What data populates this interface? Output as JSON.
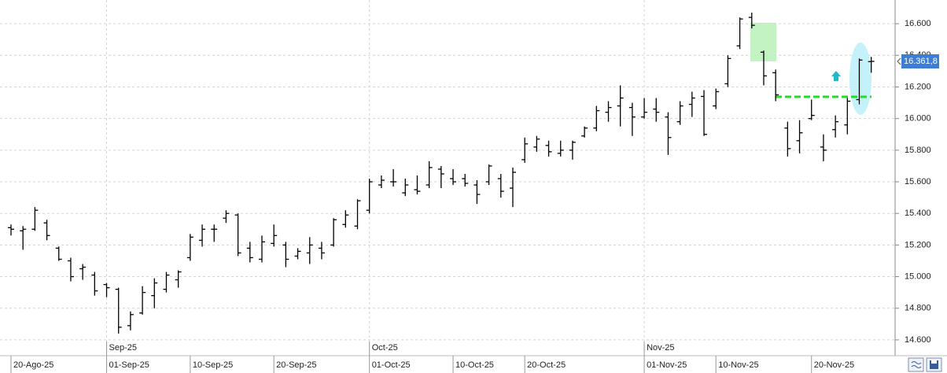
{
  "chart_data": {
    "type": "ohlc",
    "color": "#000000",
    "grid": true,
    "categories": [
      "20-Ago-25",
      null,
      null,
      null,
      null,
      null,
      null,
      null,
      "01-Sep-25",
      null,
      null,
      null,
      null,
      null,
      null,
      "10-Sep-25",
      null,
      null,
      null,
      null,
      null,
      null,
      "20-Sep-25",
      null,
      null,
      null,
      null,
      null,
      null,
      null,
      "01-Oct-25",
      null,
      null,
      null,
      null,
      null,
      null,
      "10-Oct-25",
      null,
      null,
      null,
      null,
      null,
      "20-Oct-25",
      null,
      null,
      null,
      null,
      null,
      null,
      null,
      null,
      null,
      "01-Nov-25",
      null,
      null,
      null,
      null,
      null,
      "10-Nov-25",
      null,
      null,
      null,
      null,
      null,
      null,
      null,
      "20-Nov-25",
      null,
      null,
      null,
      null,
      null
    ],
    "month_labels": [
      null,
      null,
      null,
      null,
      null,
      null,
      null,
      null,
      "Sep-25",
      null,
      null,
      null,
      null,
      null,
      null,
      null,
      null,
      null,
      null,
      null,
      null,
      null,
      null,
      null,
      null,
      null,
      null,
      null,
      null,
      null,
      "Oct-25",
      null,
      null,
      null,
      null,
      null,
      null,
      null,
      null,
      null,
      null,
      null,
      null,
      null,
      null,
      null,
      null,
      null,
      null,
      null,
      null,
      null,
      null,
      "Nov-25",
      null,
      null,
      null,
      null,
      null,
      null,
      null,
      null,
      null,
      null,
      null,
      null,
      null,
      null,
      null,
      null,
      null,
      null,
      null
    ],
    "open": [
      15310,
      15290,
      15300,
      15340,
      15180,
      15100,
      15050,
      15010,
      14950,
      14920,
      14690,
      14770,
      14880,
      14920,
      14980,
      15120,
      15230,
      15300,
      15370,
      15390,
      15180,
      15110,
      15210,
      15200,
      15130,
      15150,
      15180,
      15200,
      15330,
      15320,
      15420,
      15580,
      15600,
      15530,
      15550,
      15580,
      15680,
      15620,
      15620,
      15580,
      15600,
      15620,
      15560,
      15740,
      15820,
      15830,
      15780,
      15800,
      15890,
      15940,
      16040,
      16080,
      16070,
      16010,
      16060,
      16010,
      15980,
      16090,
      16140,
      16080,
      16220,
      16460,
      16640,
      16420,
      16290,
      15940,
      15860,
      16000,
      15820,
      15930,
      15960,
      16120,
      16360
    ],
    "high": [
      15330,
      15320,
      15440,
      15360,
      15190,
      15120,
      15080,
      15030,
      14960,
      14930,
      14780,
      14940,
      14990,
      15030,
      15040,
      15270,
      15330,
      15330,
      15420,
      15400,
      15220,
      15260,
      15330,
      15220,
      15180,
      15250,
      15220,
      15370,
      15420,
      15490,
      15620,
      15640,
      15680,
      15620,
      15640,
      15730,
      15700,
      15680,
      15650,
      15610,
      15710,
      15650,
      15690,
      15880,
      15890,
      15860,
      15860,
      15860,
      15950,
      16080,
      16110,
      16210,
      16100,
      16130,
      16130,
      16040,
      16110,
      16170,
      16180,
      16190,
      16400,
      16640,
      16670,
      16430,
      16310,
      15980,
      15990,
      16120,
      15900,
      16020,
      16130,
      16380,
      16390
    ],
    "low": [
      15260,
      15170,
      15290,
      15230,
      15100,
      14970,
      14980,
      14880,
      14870,
      14640,
      14660,
      14760,
      14800,
      14900,
      14930,
      15100,
      15190,
      15220,
      15340,
      15130,
      15090,
      15090,
      15190,
      15060,
      15110,
      15080,
      15110,
      15190,
      15310,
      15300,
      15400,
      15560,
      15570,
      15510,
      15520,
      15560,
      15560,
      15580,
      15570,
      15460,
      15580,
      15500,
      15440,
      15720,
      15790,
      15760,
      15760,
      15740,
      15880,
      15920,
      15980,
      15950,
      15890,
      16000,
      15980,
      15770,
      15960,
      16010,
      15890,
      16060,
      16200,
      16440,
      16570,
      16210,
      16110,
      15760,
      15780,
      15990,
      15730,
      15880,
      15900,
      16090,
      16290
    ],
    "close": [
      15300,
      15300,
      15420,
      15260,
      15110,
      15000,
      15060,
      14910,
      14930,
      14680,
      14760,
      14900,
      14960,
      15010,
      15030,
      15250,
      15300,
      15300,
      15400,
      15150,
      15120,
      15220,
      15260,
      15110,
      15160,
      15200,
      15150,
      15360,
      15390,
      15480,
      15600,
      15610,
      15600,
      15580,
      15540,
      15690,
      15650,
      15600,
      15590,
      15520,
      15700,
      15540,
      15660,
      15840,
      15870,
      15790,
      15800,
      15850,
      15940,
      16050,
      16070,
      16130,
      16010,
      16040,
      16040,
      15880,
      16080,
      16130,
      15900,
      16170,
      16380,
      16630,
      16590,
      16270,
      16150,
      15810,
      15910,
      16020,
      15800,
      15980,
      16110,
      16370,
      16361.8
    ],
    "ylim": [
      14500,
      16750
    ],
    "yticks": [
      {
        "value": 14600,
        "label": "14.600"
      },
      {
        "value": 14800,
        "label": "14.800"
      },
      {
        "value": 15000,
        "label": "15.000"
      },
      {
        "value": 15200,
        "label": "15.200"
      },
      {
        "value": 15400,
        "label": "15.400"
      },
      {
        "value": 15600,
        "label": "15.600"
      },
      {
        "value": 15800,
        "label": "15.800"
      },
      {
        "value": 16000,
        "label": "16.000"
      },
      {
        "value": 16200,
        "label": "16.200"
      },
      {
        "value": 16400,
        "label": "16.400"
      },
      {
        "value": 16600,
        "label": "16.600"
      }
    ],
    "last_price": {
      "value": 16361.8,
      "label": "16.361,8"
    }
  }
}
